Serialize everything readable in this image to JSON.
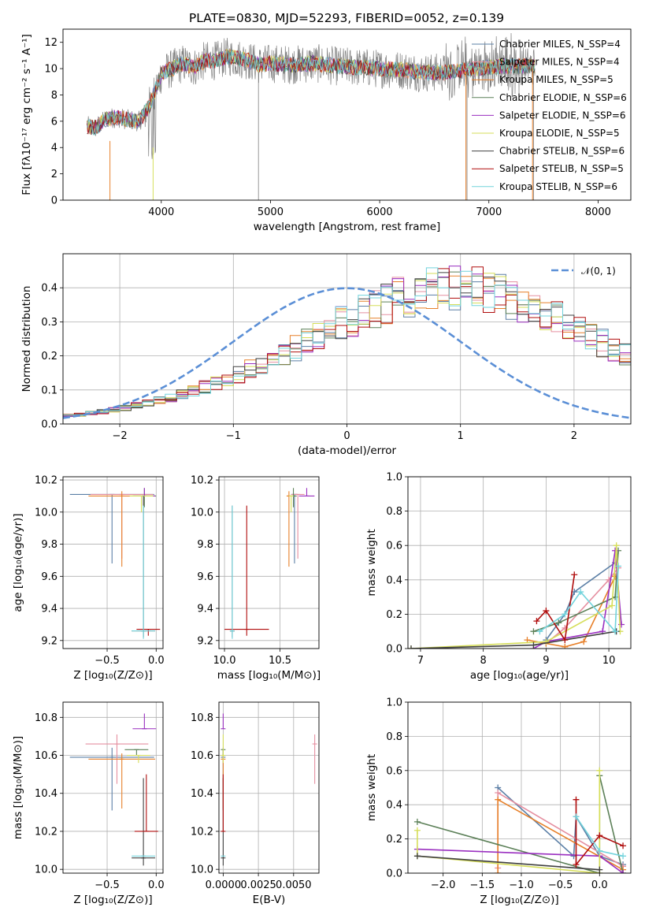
{
  "chart_data": [
    {
      "type": "line",
      "title": "PLATE=0830, MJD=52293, FIBERID=0052, z=0.139",
      "xlabel": "wavelength [Angstrom, rest frame]",
      "ylabel": "Flux [fλ10⁻¹⁷ erg cm⁻² s⁻¹ A⁻¹]",
      "xlim": [
        3100,
        8300
      ],
      "ylim": [
        0,
        13
      ],
      "xticks": [
        4000,
        5000,
        6000,
        7000,
        8000
      ],
      "yticks": [
        0,
        2,
        4,
        6,
        8,
        10,
        12
      ],
      "legend_position": "upper right",
      "legend": [
        {
          "name": "Chabrier MILES, N_SSP=4",
          "color": "#5b7fa6"
        },
        {
          "name": "Salpeter MILES, N_SSP=4",
          "color": "#e58fa0"
        },
        {
          "name": "Kroupa MILES, N_SSP=5",
          "color": "#e7802a"
        },
        {
          "name": "Chabrier ELODIE, N_SSP=6",
          "color": "#5c8058"
        },
        {
          "name": "Salpeter ELODIE, N_SSP=6",
          "color": "#9a2fc0"
        },
        {
          "name": "Kroupa ELODIE, N_SSP=5",
          "color": "#d6de5a"
        },
        {
          "name": "Chabrier STELIB, N_SSP=6",
          "color": "#404040"
        },
        {
          "name": "Salpeter STELIB, N_SSP=5",
          "color": "#b00d0d"
        },
        {
          "name": "Kroupa STELIB, N_SSP=6",
          "color": "#72d3dc"
        }
      ],
      "spectrum_outline": {
        "x": [
          3320,
          3400,
          3500,
          3600,
          3700,
          3800,
          3900,
          4000,
          4100,
          4200,
          4300,
          4400,
          4500,
          4600,
          4700,
          4800,
          4900,
          5000,
          5200,
          5400,
          5600,
          5800,
          6000,
          6200,
          6400,
          6600,
          6800,
          7000,
          7200,
          7400
        ],
        "y": [
          5.6,
          5.5,
          6.2,
          6.3,
          6.1,
          6.0,
          7.3,
          9.6,
          10.0,
          10.4,
          10.1,
          10.6,
          10.6,
          10.9,
          10.8,
          10.6,
          10.3,
          10.4,
          10.3,
          10.4,
          10.2,
          10.1,
          10.0,
          9.9,
          9.7,
          9.7,
          9.9,
          10.1,
          10.2,
          10.2
        ]
      }
    },
    {
      "type": "line",
      "title": "",
      "xlabel": "(data-model)/error",
      "ylabel": "Normed distribution",
      "xlim": [
        -2.5,
        2.5
      ],
      "ylim": [
        0,
        0.5
      ],
      "xticks": [
        -2,
        -1,
        0,
        1,
        2
      ],
      "yticks": [
        0.0,
        0.1,
        0.2,
        0.3,
        0.4
      ],
      "grid": true,
      "legend_position": "upper right",
      "legend": [
        {
          "name": "𝒩(0, 1)",
          "color": "#5b8fd6"
        }
      ],
      "histogram_bin_width": 0.1,
      "histogram_mean": [
        0.025,
        0.027,
        0.032,
        0.036,
        0.041,
        0.047,
        0.054,
        0.061,
        0.069,
        0.078,
        0.087,
        0.098,
        0.109,
        0.121,
        0.133,
        0.146,
        0.161,
        0.176,
        0.191,
        0.207,
        0.222,
        0.238,
        0.257,
        0.276,
        0.294,
        0.309,
        0.322,
        0.339,
        0.356,
        0.371,
        0.38,
        0.388,
        0.394,
        0.398,
        0.399,
        0.398,
        0.394,
        0.389,
        0.38,
        0.37,
        0.356,
        0.342,
        0.324,
        0.307,
        0.29,
        0.271,
        0.254,
        0.238,
        0.222,
        0.207,
        0.192,
        0.175,
        0.161,
        0.146,
        0.132,
        0.121,
        0.109,
        0.097,
        0.086,
        0.078,
        0.07,
        0.061,
        0.055,
        0.047,
        0.041,
        0.036,
        0.032,
        0.027,
        0.024,
        0.021,
        0.019,
        0.016,
        0.014,
        0.012,
        0.01,
        0.009,
        0.008,
        0.007,
        0.006,
        0.005,
        0.004,
        0.003,
        0.003,
        0.002,
        0.002,
        0.001,
        0.001,
        0.001,
        0.001,
        0.001,
        0.001,
        0.001,
        0.001,
        0.001,
        0.001,
        0.001,
        0.001,
        0.001,
        0.001,
        0.001
      ]
    },
    {
      "type": "scatter",
      "xlabel": "Z [log₁₀(Z/Z⊙)]",
      "ylabel": "age  [log₁₀(age/yr)]",
      "xlim": [
        -0.95,
        0.07
      ],
      "ylim": [
        9.15,
        10.22
      ],
      "xticks": [
        -0.5,
        0.0
      ],
      "yticks": [
        9.2,
        9.4,
        9.6,
        9.8,
        10.0,
        10.2
      ],
      "grid": true,
      "points": [
        {
          "x": -0.45,
          "y": 10.11,
          "xerr": 0.43,
          "yerr": [
            0.43,
            0.0
          ],
          "color": "#5b7fa6"
        },
        {
          "x": -0.35,
          "y": 10.11,
          "xerr": 0.32,
          "yerr": [
            0.4,
            0.0
          ],
          "color": "#e58fa0"
        },
        {
          "x": -0.35,
          "y": 10.1,
          "xerr": 0.34,
          "yerr": [
            0.44,
            0.03
          ],
          "color": "#e7802a"
        },
        {
          "x": -0.12,
          "y": 10.1,
          "xerr": 0.12,
          "yerr": [
            0.07,
            0.05
          ],
          "color": "#5c8058"
        },
        {
          "x": -0.12,
          "y": 10.1,
          "xerr": 0.11,
          "yerr": [
            0.0,
            0.05
          ],
          "color": "#9a2fc0"
        },
        {
          "x": -0.15,
          "y": 10.1,
          "xerr": 0.12,
          "yerr": [
            0.1,
            0.0
          ],
          "color": "#d6de5a"
        },
        {
          "x": -0.13,
          "y": 9.26,
          "xerr": 0.12,
          "yerr": [
            0.04,
            0.84
          ],
          "color": "#404040"
        },
        {
          "x": -0.08,
          "y": 9.27,
          "xerr": 0.12,
          "yerr": [
            0.04,
            0.0
          ],
          "color": "#b00d0d"
        },
        {
          "x": -0.13,
          "y": 9.26,
          "xerr": 0.12,
          "yerr": [
            0.05,
            0.78
          ],
          "color": "#72d3dc"
        }
      ]
    },
    {
      "type": "scatter",
      "xlabel": "mass [log₁₀(M/M⊙)]",
      "ylabel": "",
      "xlim": [
        9.95,
        10.85
      ],
      "ylim": [
        9.15,
        10.22
      ],
      "xticks": [
        10.0,
        10.5
      ],
      "yticks": [
        9.2,
        9.4,
        9.6,
        9.8,
        10.0,
        10.2
      ],
      "grid": true,
      "points": [
        {
          "x": 10.63,
          "y": 10.11,
          "xerr": 0.03,
          "yerr": [
            0.43,
            0.0
          ],
          "color": "#5b7fa6"
        },
        {
          "x": 10.66,
          "y": 10.11,
          "xerr": 0.06,
          "yerr": [
            0.4,
            0.0
          ],
          "color": "#e58fa0"
        },
        {
          "x": 10.58,
          "y": 10.1,
          "xerr": 0.02,
          "yerr": [
            0.44,
            0.03
          ],
          "color": "#e7802a"
        },
        {
          "x": 10.62,
          "y": 10.1,
          "xerr": 0.03,
          "yerr": [
            0.07,
            0.05
          ],
          "color": "#5c8058"
        },
        {
          "x": 10.74,
          "y": 10.1,
          "xerr": 0.07,
          "yerr": [
            0.0,
            0.05
          ],
          "color": "#9a2fc0"
        },
        {
          "x": 10.6,
          "y": 10.1,
          "xerr": 0.02,
          "yerr": [
            0.1,
            0.0
          ],
          "color": "#d6de5a"
        },
        {
          "x": 10.07,
          "y": 9.26,
          "xerr": 0.02,
          "yerr": [
            0.04,
            0.78
          ],
          "color": "#404040"
        },
        {
          "x": 10.2,
          "y": 9.27,
          "xerr": 0.2,
          "yerr": [
            0.04,
            0.77
          ],
          "color": "#b00d0d"
        },
        {
          "x": 10.07,
          "y": 9.26,
          "xerr": 0.01,
          "yerr": [
            0.05,
            0.78
          ],
          "color": "#72d3dc"
        }
      ]
    },
    {
      "type": "line",
      "xlabel": "age  [log₁₀(age/yr)]",
      "ylabel": "mass weight",
      "xlim": [
        6.8,
        10.35
      ],
      "ylim": [
        0,
        1
      ],
      "xticks": [
        7,
        8,
        9,
        10
      ],
      "yticks": [
        0.0,
        0.2,
        0.4,
        0.6,
        0.8,
        1.0
      ],
      "grid": true,
      "series": [
        {
          "color": "#5b7fa6",
          "x": [
            9.0,
            9.3,
            9.45,
            10.1
          ],
          "y": [
            0.05,
            0.2,
            0.33,
            0.5
          ]
        },
        {
          "color": "#e58fa0",
          "x": [
            9.0,
            9.3,
            10.0,
            10.15
          ],
          "y": [
            0.03,
            0.12,
            0.4,
            0.47
          ]
        },
        {
          "color": "#e7802a",
          "x": [
            8.7,
            9.0,
            9.3,
            9.6,
            10.1
          ],
          "y": [
            0.05,
            0.03,
            0.01,
            0.04,
            0.42
          ]
        },
        {
          "color": "#5c8058",
          "x": [
            8.8,
            9.2,
            10.1,
            10.15
          ],
          "y": [
            0.1,
            0.15,
            0.3,
            0.57
          ]
        },
        {
          "color": "#9a2fc0",
          "x": [
            8.8,
            9.0,
            9.9,
            10.1,
            10.2
          ],
          "y": [
            0.0,
            0.04,
            0.1,
            0.57,
            0.14
          ]
        },
        {
          "color": "#d6de5a",
          "x": [
            6.85,
            9.0,
            10.05,
            10.12,
            10.18
          ],
          "y": [
            0.0,
            0.04,
            0.25,
            0.6,
            0.1
          ]
        },
        {
          "color": "#404040",
          "x": [
            6.85,
            8.8,
            10.12
          ],
          "y": [
            0.0,
            0.02,
            0.1
          ]
        },
        {
          "color": "#b00d0d",
          "x": [
            8.85,
            9.0,
            9.3,
            9.45
          ],
          "y": [
            0.16,
            0.22,
            0.05,
            0.43
          ]
        },
        {
          "color": "#72d3dc",
          "x": [
            8.9,
            9.3,
            9.55,
            10.1,
            10.15
          ],
          "y": [
            0.1,
            0.2,
            0.33,
            0.1,
            0.48
          ]
        }
      ]
    },
    {
      "type": "scatter",
      "xlabel": "Z [log₁₀(Z/Z⊙)]",
      "ylabel": "mass [log₁₀(M/M⊙)]",
      "xlim": [
        -0.95,
        0.07
      ],
      "ylim": [
        9.98,
        10.88
      ],
      "xticks": [
        -0.5,
        0.0
      ],
      "yticks": [
        10.0,
        10.2,
        10.4,
        10.6,
        10.8
      ],
      "grid": true,
      "points": [
        {
          "x": -0.45,
          "y": 10.59,
          "xerr": 0.43,
          "yerr": [
            0.28,
            0.05
          ],
          "color": "#5b7fa6"
        },
        {
          "x": -0.4,
          "y": 10.66,
          "xerr": 0.32,
          "yerr": [
            0.21,
            0.05
          ],
          "color": "#e58fa0"
        },
        {
          "x": -0.35,
          "y": 10.58,
          "xerr": 0.34,
          "yerr": [
            0.26,
            0.03
          ],
          "color": "#e7802a"
        },
        {
          "x": -0.2,
          "y": 10.63,
          "xerr": 0.12,
          "yerr": [
            0.03,
            0.0
          ],
          "color": "#5c8058"
        },
        {
          "x": -0.12,
          "y": 10.74,
          "xerr": 0.12,
          "yerr": [
            0.0,
            0.08
          ],
          "color": "#9a2fc0"
        },
        {
          "x": -0.18,
          "y": 10.6,
          "xerr": 0.12,
          "yerr": [
            0.04,
            0.0
          ],
          "color": "#d6de5a"
        },
        {
          "x": -0.13,
          "y": 10.06,
          "xerr": 0.12,
          "yerr": [
            0.04,
            0.42
          ],
          "color": "#404040"
        },
        {
          "x": -0.1,
          "y": 10.2,
          "xerr": 0.12,
          "yerr": [
            0.0,
            0.3
          ],
          "color": "#b00d0d"
        },
        {
          "x": -0.13,
          "y": 10.07,
          "xerr": 0.12,
          "yerr": [
            0.0,
            0.0
          ],
          "color": "#72d3dc"
        }
      ]
    },
    {
      "type": "scatter",
      "xlabel": "E(B-V)",
      "ylabel": "",
      "xlim": [
        -0.0003,
        0.0068
      ],
      "ylim": [
        9.98,
        10.88
      ],
      "xticks": [
        0.0,
        0.0025,
        0.005
      ],
      "xticklabels": [
        "0.0000",
        "0.0025",
        "0.0050"
      ],
      "yticks": [
        10.0,
        10.2,
        10.4,
        10.6,
        10.8
      ],
      "grid": true,
      "points": [
        {
          "x": 0.0,
          "y": 10.59,
          "yerr": [
            0.28,
            0.05
          ],
          "color": "#5b7fa6"
        },
        {
          "x": 0.0065,
          "y": 10.66,
          "yerr": [
            0.21,
            0.05
          ],
          "color": "#e58fa0"
        },
        {
          "x": 0.0,
          "y": 10.58,
          "yerr": [
            0.26,
            0.03
          ],
          "color": "#e7802a"
        },
        {
          "x": 0.0,
          "y": 10.63,
          "yerr": [
            0.03,
            0.0
          ],
          "color": "#5c8058"
        },
        {
          "x": 0.0,
          "y": 10.74,
          "yerr": [
            0.0,
            0.08
          ],
          "color": "#9a2fc0"
        },
        {
          "x": 0.0,
          "y": 10.6,
          "yerr": [
            0.04,
            0.11
          ],
          "color": "#d6de5a"
        },
        {
          "x": 0.0,
          "y": 10.06,
          "yerr": [
            0.04,
            0.42
          ],
          "color": "#404040"
        },
        {
          "x": 0.0,
          "y": 10.2,
          "yerr": [
            0.0,
            0.3
          ],
          "color": "#b00d0d"
        },
        {
          "x": 0.0,
          "y": 10.07,
          "yerr": [
            0.0,
            0.0
          ],
          "color": "#72d3dc"
        }
      ]
    },
    {
      "type": "line",
      "xlabel": "Z [log₁₀(Z/Z⊙)]",
      "ylabel": "mass weight",
      "xlim": [
        -2.45,
        0.4
      ],
      "ylim": [
        0,
        1
      ],
      "xticks": [
        -2.0,
        -1.5,
        -1.0,
        -0.5,
        0.0
      ],
      "yticks": [
        0.0,
        0.2,
        0.4,
        0.6,
        0.8,
        1.0
      ],
      "grid": true,
      "series": [
        {
          "color": "#5b7fa6",
          "x": [
            -1.3,
            -0.33,
            -0.3,
            0.0,
            0.3
          ],
          "y": [
            0.5,
            0.1,
            0.33,
            0.1,
            0.05
          ]
        },
        {
          "color": "#e58fa0",
          "x": [
            -1.3,
            -1.3,
            0.3
          ],
          "y": [
            0.03,
            0.47,
            0.04
          ]
        },
        {
          "color": "#e7802a",
          "x": [
            -1.3,
            -1.3,
            0.3
          ],
          "y": [
            0.0,
            0.43,
            0.02
          ]
        },
        {
          "color": "#5c8058",
          "x": [
            -2.33,
            0.0,
            0.0,
            0.3
          ],
          "y": [
            0.3,
            0.0,
            0.57,
            0.0
          ]
        },
        {
          "color": "#9a2fc0",
          "x": [
            -2.33,
            0.0,
            0.3
          ],
          "y": [
            0.14,
            0.1,
            0.0
          ]
        },
        {
          "color": "#d6de5a",
          "x": [
            -2.33,
            -2.33,
            0.0,
            0.0,
            0.0
          ],
          "y": [
            0.25,
            0.1,
            0.0,
            0.6,
            0.13
          ]
        },
        {
          "color": "#404040",
          "x": [
            -2.33,
            0.0
          ],
          "y": [
            0.1,
            0.02
          ]
        },
        {
          "color": "#b00d0d",
          "x": [
            -0.3,
            -0.3,
            0.0,
            0.3
          ],
          "y": [
            0.43,
            0.05,
            0.22,
            0.16
          ]
        },
        {
          "color": "#72d3dc",
          "x": [
            -0.3,
            0.0,
            0.3
          ],
          "y": [
            0.33,
            0.13,
            0.1
          ]
        }
      ]
    }
  ]
}
